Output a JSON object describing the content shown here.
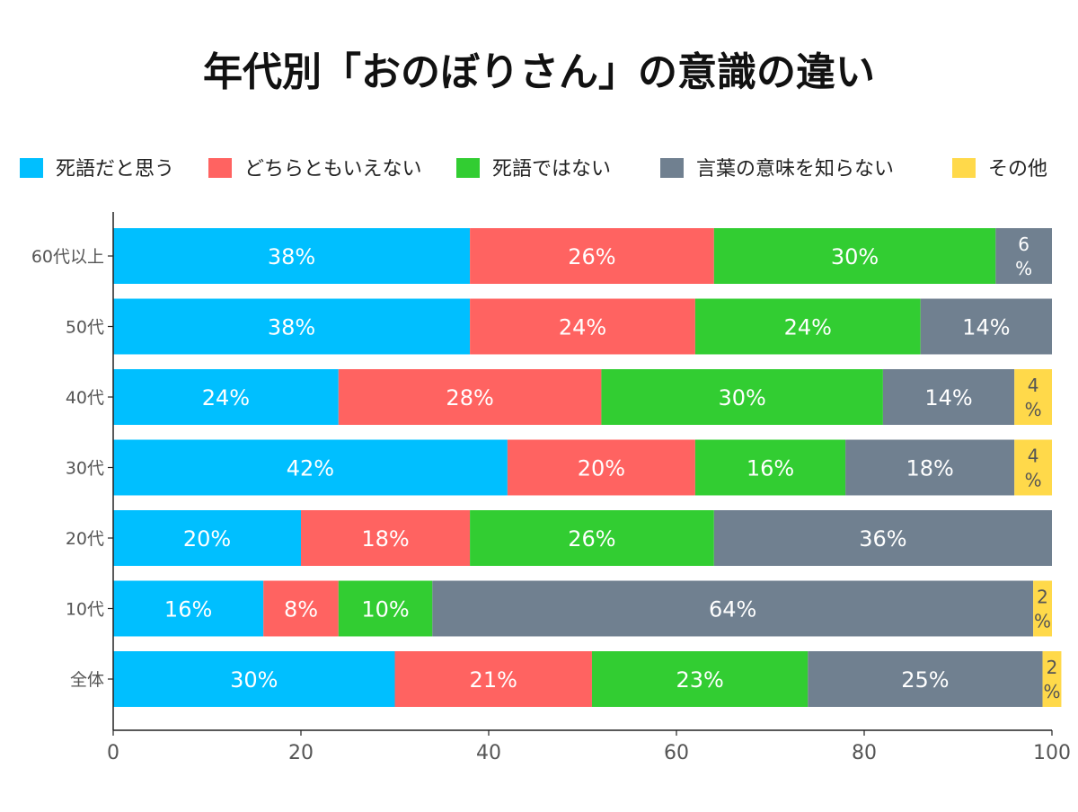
{
  "chart_data": {
    "type": "bar",
    "orientation": "horizontal",
    "stacked": true,
    "title": "年代別「おのぼりさん」の意識の違い",
    "xlabel": "",
    "ylabel": "",
    "xlim": [
      0,
      100
    ],
    "x_ticks": [
      "0",
      "20",
      "40",
      "60",
      "80",
      "100"
    ],
    "grid": false,
    "legend_position": "top",
    "categories": [
      "60代以上",
      "50代",
      "40代",
      "30代",
      "20代",
      "10代",
      "全体"
    ],
    "series": [
      {
        "name": "死語だと思う",
        "color": "#00bfff",
        "values": [
          38,
          38,
          24,
          42,
          20,
          16,
          30
        ],
        "labels": [
          "38%",
          "38%",
          "24%",
          "42%",
          "20%",
          "16%",
          "30%"
        ]
      },
      {
        "name": "どちらともいえない",
        "color": "#ff6361",
        "values": [
          26,
          24,
          28,
          20,
          18,
          8,
          21
        ],
        "labels": [
          "26%",
          "24%",
          "28%",
          "20%",
          "18%",
          "8%",
          "21%"
        ]
      },
      {
        "name": "死語ではない",
        "color": "#32cd32",
        "values": [
          30,
          24,
          30,
          16,
          26,
          10,
          23
        ],
        "labels": [
          "30%",
          "24%",
          "30%",
          "16%",
          "26%",
          "10%",
          "23%"
        ]
      },
      {
        "name": "言葉の意味を知らない",
        "color": "#708090",
        "values": [
          6,
          14,
          14,
          18,
          36,
          64,
          25
        ],
        "labels": [
          "6%",
          "14%",
          "14%",
          "18%",
          "36%",
          "64%",
          "25%"
        ]
      },
      {
        "name": "その他",
        "color": "#ffd94a",
        "values": [
          0,
          0,
          4,
          4,
          0,
          2,
          2
        ],
        "labels": [
          "",
          "",
          "4%",
          "4%",
          "",
          "2%",
          "2%"
        ]
      }
    ]
  }
}
